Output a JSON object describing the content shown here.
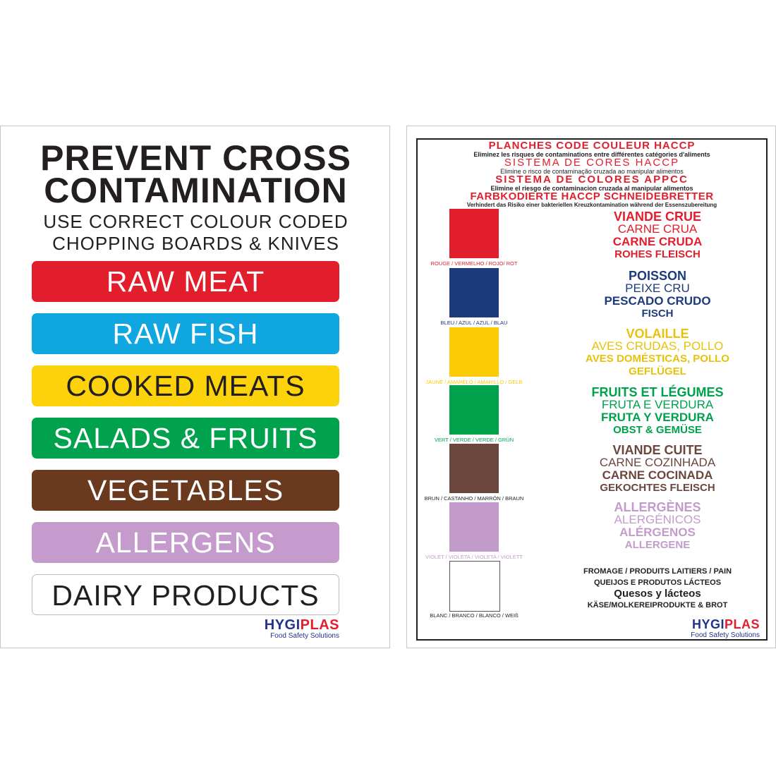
{
  "left_poster": {
    "title_lines": [
      "PREVENT CROSS",
      "CONTAMINATION"
    ],
    "subtitle_lines": [
      "USE CORRECT COLOUR CODED",
      "CHOPPING BOARDS & KNIVES"
    ],
    "bars": [
      {
        "label": "RAW MEAT",
        "color": "#e31e2c",
        "text_color": "#ffffff"
      },
      {
        "label": "RAW FISH",
        "color": "#10a6e0",
        "text_color": "#ffffff"
      },
      {
        "label": "COOKED MEATS",
        "color": "#fcd20b",
        "text_color": "#231f20"
      },
      {
        "label": "SALADS & FRUITS",
        "color": "#00a24d",
        "text_color": "#ffffff"
      },
      {
        "label": "VEGETABLES",
        "color": "#6b3a1e",
        "text_color": "#ffffff"
      },
      {
        "label": "ALLERGENS",
        "color": "#c49bcc",
        "text_color": "#ffffff"
      },
      {
        "label": "DAIRY PRODUCTS",
        "color": "#ffffff",
        "text_color": "#231f20"
      }
    ],
    "logo": {
      "brand_a": "HYGI",
      "brand_b": "PLAS",
      "tagline": "Food Safety Solutions"
    }
  },
  "right_poster": {
    "headings": [
      {
        "title": "PLANCHES CODE COULEUR HACCP",
        "subtitle": "Eliminez les risques de contaminations entre différentes catégories d'aliments"
      },
      {
        "title": "SISTEMA DE CORES HACCP",
        "subtitle": "Elimine o risco de contaminação cruzada ao manipular alimentos"
      },
      {
        "title": "SISTEMA DE COLORES APPCC",
        "subtitle": "Elimine el riesgo de contaminacion cruzada al manipular alimentos"
      },
      {
        "title": "FARBKODIERTE HACCP SCHNEIDEBRETTER",
        "subtitle": "Verhindert das Risiko einer bakteriellen Kreuzkontamination während der Essenszubereitung"
      }
    ],
    "swatches": [
      {
        "label": "ROUGE / VERMELHO / ROJO/ ROT",
        "color": "#e31e2c",
        "lines": [
          "VIANDE CRUE",
          "CARNE CRUA",
          "CARNE CRUDA",
          "ROHES FLEISCH"
        ]
      },
      {
        "label": "BLEU / AZUL / AZUL / BLAU",
        "color": "#1d3a7c",
        "lines": [
          "POISSON",
          "PEIXE CRU",
          "PESCADO CRUDO",
          "FISCH"
        ]
      },
      {
        "label": "JAUNE / AMARELO / AMARILLO / GELB",
        "color": "#fccb05",
        "lines": [
          "VOLAILLE",
          "AVES CRUDAS, POLLO",
          "AVES DOMÉSTICAS, POLLO",
          "GEFLÜGEL"
        ]
      },
      {
        "label": "VERT / VERDE / VERDE / GRÜN",
        "color": "#00a14b",
        "lines": [
          "FRUITS ET LÉGUMES",
          "FRUTA E VERDURA",
          "FRUTA Y VERDURA",
          "OBST & GEMÜSE"
        ]
      },
      {
        "label": "BRUN / CASTANHO / MARRÓN / BRAUN",
        "color": "#6a463d",
        "lines": [
          "VIANDE CUITE",
          "CARNE COZINHADA",
          "CARNE COCINADA",
          "GEKOCHTES FLEISCH"
        ]
      },
      {
        "label": "VIOLET / VIOLETA / VIOLETA / VIOLETT",
        "color": "#c39bca",
        "lines": [
          "ALLERGÈNES",
          "ALERGÉNICOS",
          "ALÉRGENOS",
          "ALLERGENE"
        ]
      },
      {
        "label": "BLANC / BRANCO / BLANCO / WEIß",
        "color": "#ffffff",
        "lines": [
          "FROMAGE / PRODUITS LAITIERS / PAIN",
          "QUEIJOS E PRODUTOS LÁCTEOS",
          "Quesos y lácteos",
          "KÄSE/MOLKEREIPRODUKTE & BROT"
        ]
      }
    ],
    "logo": {
      "brand_a": "HYGI",
      "brand_b": "PLAS",
      "tagline": "Food Safety Solutions"
    }
  }
}
